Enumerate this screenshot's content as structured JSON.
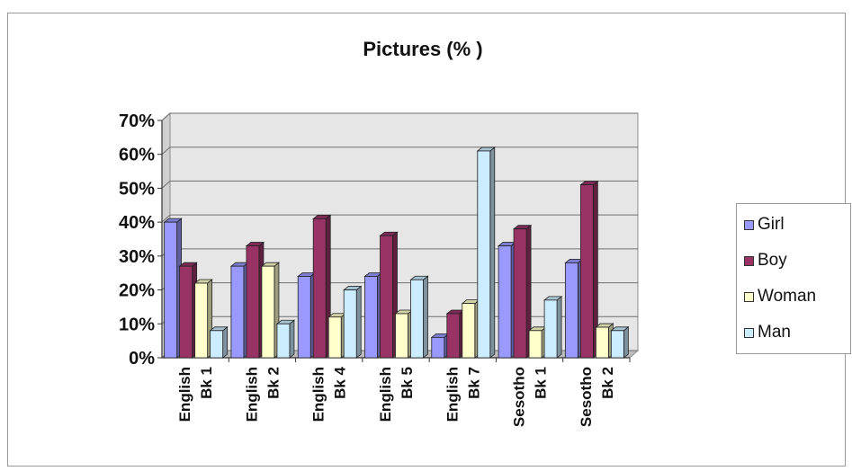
{
  "chart_data": {
    "type": "bar",
    "title": "Pictures (% )",
    "xlabel": "",
    "ylabel": "",
    "ylim": [
      0,
      70
    ],
    "y_tick_format": "percent",
    "y_ticks": [
      "0%",
      "10%",
      "20%",
      "30%",
      "40%",
      "50%",
      "60%",
      "70%"
    ],
    "grid": true,
    "legend_position": "right",
    "categories": [
      [
        "English",
        "Bk 1"
      ],
      [
        "English",
        "Bk 2"
      ],
      [
        "English",
        "Bk 4"
      ],
      [
        "English",
        "Bk 5"
      ],
      [
        "English",
        "Bk 7"
      ],
      [
        "Sesotho",
        "Bk 1"
      ],
      [
        "Sesotho",
        "Bk 2"
      ]
    ],
    "series": [
      {
        "name": "Girl",
        "color": "#9999ff",
        "values": [
          40,
          27,
          24,
          24,
          6,
          33,
          28
        ]
      },
      {
        "name": "Boy",
        "color": "#993366",
        "values": [
          27,
          33,
          41,
          36,
          13,
          38,
          51
        ]
      },
      {
        "name": "Woman",
        "color": "#ffffcc",
        "values": [
          22,
          27,
          12,
          13,
          16,
          8,
          9
        ]
      },
      {
        "name": "Man",
        "color": "#ccecff",
        "values": [
          8,
          10,
          20,
          23,
          61,
          17,
          8
        ]
      }
    ]
  }
}
